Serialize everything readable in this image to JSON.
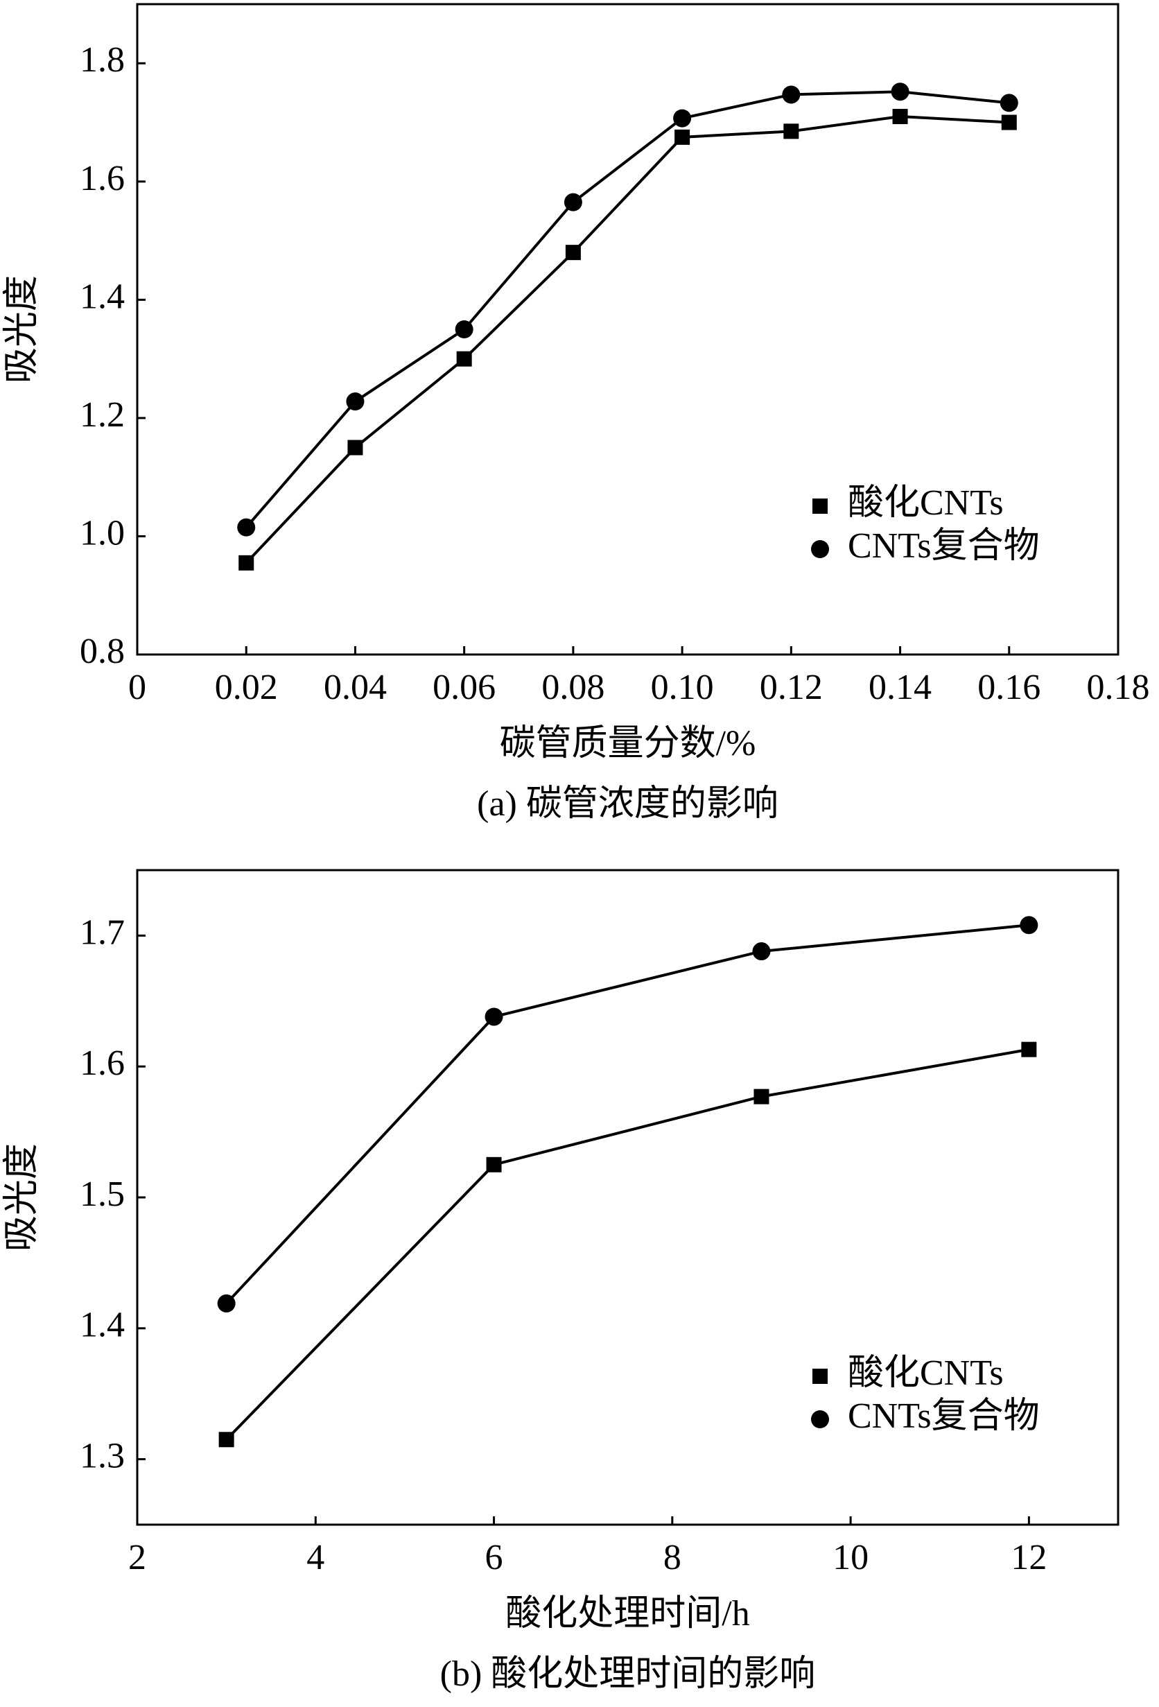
{
  "chart_data": [
    {
      "type": "line",
      "x": [
        0.02,
        0.04,
        0.06,
        0.08,
        0.1,
        0.12,
        0.14,
        0.16
      ],
      "series": [
        {
          "name": "酸化CNTs",
          "color": "#000000",
          "marker": "square",
          "values": [
            0.955,
            1.15,
            1.3,
            1.48,
            1.675,
            1.685,
            1.71,
            1.7
          ]
        },
        {
          "name": "CNTs复合物",
          "color": "#000000",
          "marker": "circle",
          "values": [
            1.015,
            1.228,
            1.35,
            1.565,
            1.707,
            1.747,
            1.752,
            1.733
          ]
        }
      ],
      "xlim": [
        0,
        0.18
      ],
      "xticks": [
        0,
        0.02,
        0.04,
        0.06,
        0.08,
        {
          "value": 0.1,
          "label": "0.10"
        },
        0.12,
        0.14,
        0.16,
        0.18
      ],
      "ylim": [
        0.8,
        1.9
      ],
      "yticks": [
        0.8,
        {
          "value": 1.0,
          "label": "1.0"
        },
        1.2,
        1.4,
        1.6,
        1.8
      ],
      "xlabel": "碳管质量分数/%",
      "ylabel": "吸光度",
      "caption": "(a) 碳管浓度的影响",
      "legend": "lower right"
    },
    {
      "type": "line",
      "x": [
        3,
        6,
        9,
        12
      ],
      "series": [
        {
          "name": "酸化CNTs",
          "color": "#000000",
          "marker": "square",
          "values": [
            1.315,
            1.525,
            1.577,
            1.613
          ]
        },
        {
          "name": "CNTs复合物",
          "color": "#000000",
          "marker": "circle",
          "values": [
            1.419,
            1.638,
            1.688,
            1.708
          ]
        }
      ],
      "xlim": [
        2,
        13
      ],
      "xticks": [
        2,
        4,
        6,
        8,
        10,
        12
      ],
      "ylim": [
        1.25,
        1.75
      ],
      "yticks": [
        1.3,
        1.4,
        1.5,
        1.6,
        1.7
      ],
      "xlabel": "酸化处理时间/h",
      "ylabel": "吸光度",
      "caption": "(b) 酸化处理时间的影响",
      "legend": "lower right"
    }
  ]
}
